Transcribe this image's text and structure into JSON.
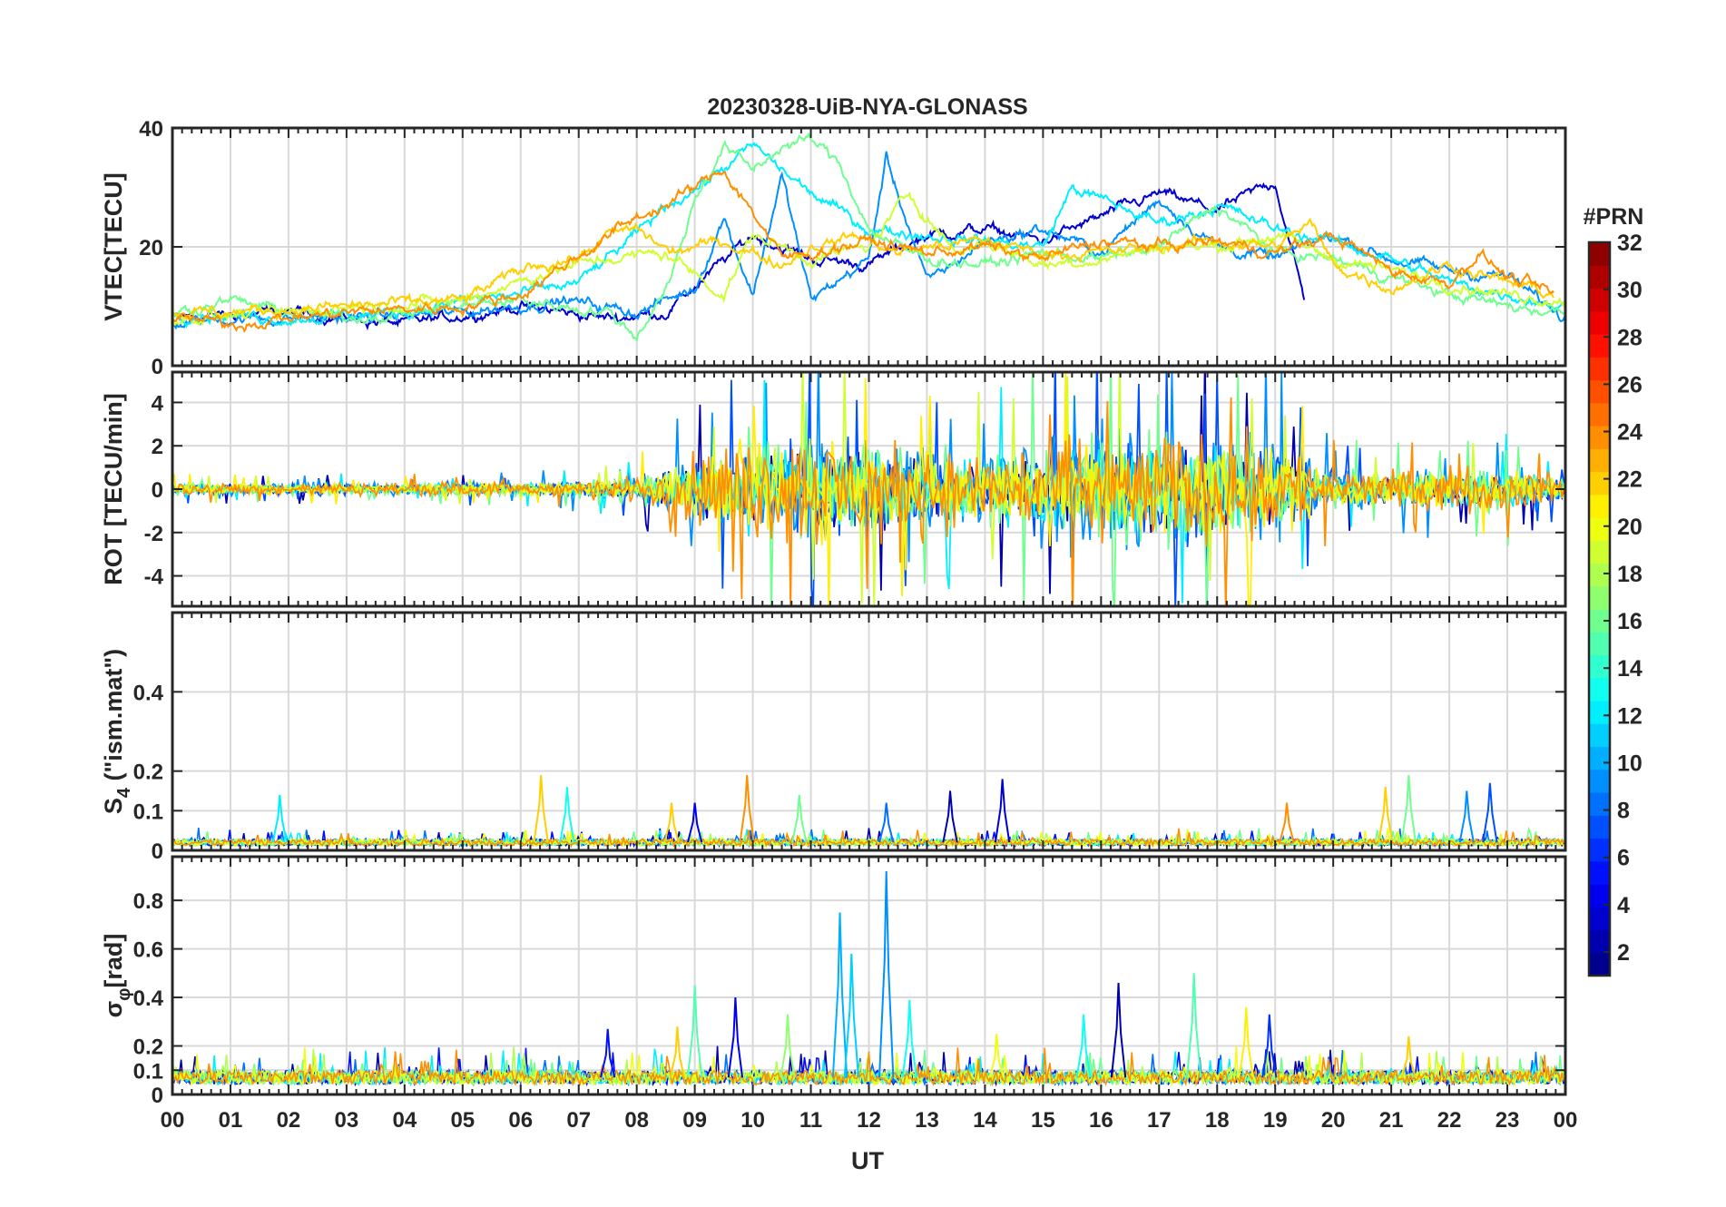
{
  "chart_data": {
    "type": "line",
    "title": "20230328-UiB-NYA-GLONASS",
    "xlabel": "UT",
    "x_range": [
      0,
      24
    ],
    "x_ticks": [
      "00",
      "01",
      "02",
      "03",
      "04",
      "05",
      "06",
      "07",
      "08",
      "09",
      "10",
      "11",
      "12",
      "13",
      "14",
      "15",
      "16",
      "17",
      "18",
      "19",
      "20",
      "21",
      "22",
      "23",
      "00"
    ],
    "grid": true,
    "colorbar": {
      "title": "#PRN",
      "range": [
        1,
        32
      ],
      "colormap": "jet",
      "ticks": [
        2,
        4,
        6,
        8,
        10,
        12,
        14,
        16,
        18,
        20,
        22,
        24,
        26,
        28,
        30,
        32
      ],
      "tick_labels": [
        "2",
        "4",
        "6",
        "8",
        "10",
        "12",
        "14",
        "16",
        "18",
        "20",
        "22",
        "24",
        "26",
        "28",
        "30",
        "32"
      ]
    },
    "panels": [
      {
        "id": "vtec",
        "ylabel": "VTEC[TECU]",
        "ylim": [
          0,
          40
        ],
        "y_ticks": [
          0,
          20,
          40
        ],
        "y_tick_labels": [
          "0",
          "20",
          "40"
        ],
        "series": [
          {
            "prn": 3,
            "t": [
              0,
              2,
              4,
              6,
              7.5,
              8.5,
              9.2,
              10,
              11,
              12,
              13,
              14,
              15,
              16,
              17,
              18,
              19,
              19.5
            ],
            "v": [
              8,
              9,
              7,
              10,
              8,
              9,
              15,
              22,
              18,
              17,
              22,
              23,
              21,
              25,
              29,
              26,
              31,
              11
            ]
          },
          {
            "prn": 9,
            "t": [
              0,
              1,
              3,
              5,
              6.8,
              8,
              9,
              9.5,
              10,
              10.5,
              11,
              12,
              12.3,
              13,
              14,
              15,
              16,
              17,
              18,
              19,
              20,
              21,
              22,
              23,
              24
            ],
            "v": [
              7,
              8,
              8,
              9,
              11,
              9,
              13,
              25,
              12,
              32,
              11,
              18,
              35,
              14,
              21,
              23,
              19,
              28,
              20,
              18,
              22,
              18,
              16,
              15,
              8
            ]
          },
          {
            "prn": 12,
            "t": [
              0,
              2,
              4,
              5,
              6,
              7,
              8,
              8.5,
              9.2,
              10,
              11,
              12,
              13,
              14,
              15,
              15.5,
              16,
              17,
              18,
              19,
              20,
              21,
              22,
              23,
              24
            ],
            "v": [
              9,
              8,
              9,
              11,
              12,
              14,
              22,
              27,
              31,
              37,
              29,
              23,
              22,
              21,
              20,
              30,
              28,
              24,
              27,
              23,
              21,
              18,
              14,
              12,
              10
            ]
          },
          {
            "prn": 16,
            "t": [
              0,
              1,
              2,
              3,
              4,
              5,
              6,
              7.5,
              8,
              8.6,
              9,
              9.5,
              10,
              10.5,
              11,
              11.5,
              12,
              12.5,
              13,
              14,
              15,
              16,
              17,
              18,
              19,
              20,
              21,
              22,
              23,
              24
            ],
            "v": [
              9,
              11,
              9,
              8,
              9,
              10,
              11,
              9,
              5,
              15,
              28,
              37,
              33,
              37,
              38,
              34,
              23,
              20,
              18,
              17,
              19,
              18,
              20,
              27,
              19,
              18,
              15,
              12,
              10,
              9
            ]
          },
          {
            "prn": 19,
            "t": [
              0,
              2,
              3,
              5,
              6.5,
              7.5,
              8.5,
              9.5,
              10,
              11,
              12,
              12.7,
              13.5,
              14,
              15,
              16,
              17,
              18,
              19,
              20,
              21,
              22,
              23,
              24
            ],
            "v": [
              8,
              9,
              10,
              11,
              16,
              18,
              19,
              12,
              22,
              18,
              20,
              29,
              19,
              21,
              17,
              18,
              20,
              20,
              22,
              18,
              16,
              14,
              12,
              11
            ]
          },
          {
            "prn": 22,
            "t": [
              0,
              1,
              3,
              5,
              6.2,
              7,
              7.5,
              8,
              8.6,
              9.5,
              10,
              10.5,
              11,
              11.8,
              12.5,
              13,
              14,
              15,
              16,
              17,
              18,
              19,
              19.6,
              20,
              21,
              22,
              23,
              23.8
            ],
            "v": [
              9,
              9,
              10,
              11,
              17,
              18,
              22,
              23,
              19,
              21,
              19,
              17,
              20,
              22,
              19,
              20,
              21,
              19,
              19,
              20,
              21,
              20,
              24,
              17,
              13,
              17,
              14,
              12
            ]
          },
          {
            "prn": 24,
            "t": [
              0,
              1,
              2,
              3,
              5,
              6,
              8,
              8.5,
              9,
              9.5,
              10,
              10.5,
              11,
              12,
              13,
              14,
              15,
              16,
              17,
              18,
              19,
              20,
              21,
              22,
              22.5,
              23,
              23.8
            ],
            "v": [
              8,
              7,
              8,
              9,
              10,
              12,
              25,
              27,
              30,
              33,
              26,
              18,
              19,
              21,
              19,
              20,
              18,
              21,
              20,
              21,
              19,
              22,
              16,
              14,
              19,
              15,
              12
            ]
          }
        ]
      },
      {
        "id": "rot",
        "ylabel": "ROT [TECU/min]",
        "ylim": [
          -5.4,
          5.4
        ],
        "y_ticks": [
          -4,
          -2,
          0,
          2,
          4
        ],
        "y_tick_labels": [
          "-4",
          "-2",
          "0",
          "2",
          "4"
        ],
        "activity_profile": {
          "t": [
            0,
            2,
            4,
            6,
            7,
            8,
            8.5,
            9,
            10,
            11,
            12,
            13,
            14,
            15,
            16,
            17,
            18,
            19,
            20,
            21,
            22,
            23,
            24
          ],
          "amp": [
            0.6,
            0.6,
            0.6,
            0.7,
            0.9,
            1.2,
            2.5,
            3.5,
            5,
            5.4,
            5,
            4,
            4,
            5.4,
            5.4,
            5.4,
            5.4,
            5,
            2,
            1.8,
            2,
            2.2,
            1.2
          ]
        },
        "series_prns": [
          2,
          7,
          9,
          12,
          16,
          19,
          21,
          24
        ]
      },
      {
        "id": "s4",
        "ylabel_main": "S",
        "ylabel_sub": "4",
        "ylabel_rest": " (\"ism.mat\")",
        "ylim": [
          0,
          0.6
        ],
        "y_ticks": [
          0,
          0.1,
          0.2,
          0.4
        ],
        "y_tick_labels": [
          "0",
          "0.1",
          "0.2",
          "0.4"
        ],
        "baseline": 0.02,
        "spikes": [
          {
            "t": 1.85,
            "v": 0.14,
            "prn": 12
          },
          {
            "t": 6.35,
            "v": 0.19,
            "prn": 22
          },
          {
            "t": 6.8,
            "v": 0.16,
            "prn": 13
          },
          {
            "t": 8.6,
            "v": 0.12,
            "prn": 22
          },
          {
            "t": 9.0,
            "v": 0.12,
            "prn": 4
          },
          {
            "t": 9.9,
            "v": 0.19,
            "prn": 24
          },
          {
            "t": 10.8,
            "v": 0.14,
            "prn": 16
          },
          {
            "t": 12.3,
            "v": 0.12,
            "prn": 8
          },
          {
            "t": 13.4,
            "v": 0.15,
            "prn": 2
          },
          {
            "t": 14.3,
            "v": 0.18,
            "prn": 3
          },
          {
            "t": 19.2,
            "v": 0.12,
            "prn": 24
          },
          {
            "t": 20.9,
            "v": 0.16,
            "prn": 22
          },
          {
            "t": 21.3,
            "v": 0.19,
            "prn": 16
          },
          {
            "t": 22.3,
            "v": 0.15,
            "prn": 9
          },
          {
            "t": 22.7,
            "v": 0.17,
            "prn": 7
          }
        ]
      },
      {
        "id": "sigma_phi",
        "ylabel_main": "σ",
        "ylabel_sub": "φ",
        "ylabel_rest": "[rad]",
        "ylim": [
          0,
          0.98
        ],
        "y_ticks": [
          0,
          0.1,
          0.2,
          0.4,
          0.6,
          0.8
        ],
        "y_tick_labels": [
          "0",
          "0.1",
          "0.2",
          "0.4",
          "0.6",
          "0.8"
        ],
        "baseline": 0.07,
        "spikes": [
          {
            "t": 7.5,
            "v": 0.27,
            "prn": 5
          },
          {
            "t": 8.7,
            "v": 0.28,
            "prn": 22
          },
          {
            "t": 9.0,
            "v": 0.45,
            "prn": 15
          },
          {
            "t": 9.7,
            "v": 0.4,
            "prn": 4
          },
          {
            "t": 10.6,
            "v": 0.33,
            "prn": 17
          },
          {
            "t": 11.5,
            "v": 0.75,
            "prn": 10
          },
          {
            "t": 11.7,
            "v": 0.58,
            "prn": 11
          },
          {
            "t": 12.3,
            "v": 0.92,
            "prn": 9
          },
          {
            "t": 12.7,
            "v": 0.39,
            "prn": 13
          },
          {
            "t": 14.2,
            "v": 0.25,
            "prn": 20
          },
          {
            "t": 15.7,
            "v": 0.33,
            "prn": 13
          },
          {
            "t": 16.3,
            "v": 0.46,
            "prn": 2
          },
          {
            "t": 17.6,
            "v": 0.5,
            "prn": 15
          },
          {
            "t": 18.5,
            "v": 0.36,
            "prn": 21
          },
          {
            "t": 18.9,
            "v": 0.33,
            "prn": 6
          },
          {
            "t": 21.3,
            "v": 0.24,
            "prn": 22
          }
        ]
      }
    ]
  }
}
